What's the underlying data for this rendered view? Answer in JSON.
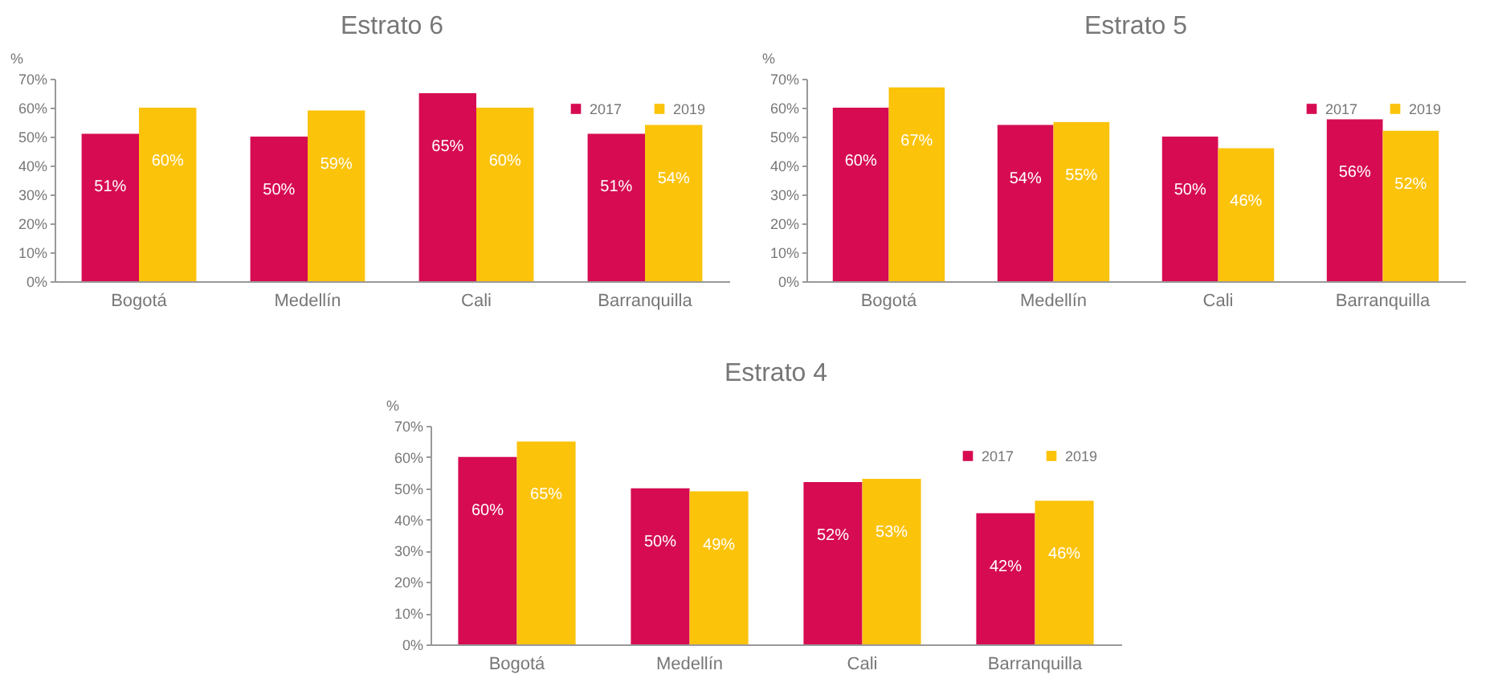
{
  "chart_data": [
    {
      "type": "bar",
      "title": "Estrato 6",
      "ylabel": "%",
      "categories": [
        "Bogotá",
        "Medellín",
        "Cali",
        "Barranquilla"
      ],
      "series": [
        {
          "name": "2017",
          "color": "#d60b52",
          "values": [
            51,
            50,
            65,
            51
          ],
          "value_labels": [
            "51%",
            "50%",
            "65%",
            "51%"
          ]
        },
        {
          "name": "2019",
          "color": "#fcc30b",
          "values": [
            60,
            59,
            60,
            54
          ],
          "value_labels": [
            "60%",
            "59%",
            "60%",
            "54%"
          ]
        }
      ],
      "ylim": [
        0,
        70
      ],
      "yticks": [
        {
          "value": 0,
          "label": "0%"
        },
        {
          "value": 10,
          "label": "10%"
        },
        {
          "value": 20,
          "label": "20%"
        },
        {
          "value": 30,
          "label": "30%"
        },
        {
          "value": 40,
          "label": "40%"
        },
        {
          "value": 50,
          "label": "50%"
        },
        {
          "value": 60,
          "label": "60%"
        },
        {
          "value": 70,
          "label": "70%"
        }
      ],
      "legend": "top right",
      "grid": false
    },
    {
      "type": "bar",
      "title": "Estrato 5",
      "ylabel": "%",
      "categories": [
        "Bogotá",
        "Medellín",
        "Cali",
        "Barranquilla"
      ],
      "series": [
        {
          "name": "2017",
          "color": "#d60b52",
          "values": [
            60,
            54,
            50,
            56
          ],
          "value_labels": [
            "60%",
            "54%",
            "50%",
            "56%"
          ]
        },
        {
          "name": "2019",
          "color": "#fcc30b",
          "values": [
            67,
            55,
            46,
            52
          ],
          "value_labels": [
            "67%",
            "55%",
            "46%",
            "52%"
          ]
        }
      ],
      "ylim": [
        0,
        70
      ],
      "yticks": [
        {
          "value": 0,
          "label": "0%"
        },
        {
          "value": 10,
          "label": "10%"
        },
        {
          "value": 20,
          "label": "20%"
        },
        {
          "value": 30,
          "label": "30%"
        },
        {
          "value": 40,
          "label": "40%"
        },
        {
          "value": 50,
          "label": "50%"
        },
        {
          "value": 60,
          "label": "60%"
        },
        {
          "value": 70,
          "label": "70%"
        }
      ],
      "legend": "top right",
      "grid": false
    },
    {
      "type": "bar",
      "title": "Estrato 4",
      "ylabel": "%",
      "categories": [
        "Bogotá",
        "Medellín",
        "Cali",
        "Barranquilla"
      ],
      "series": [
        {
          "name": "2017",
          "color": "#d60b52",
          "values": [
            60,
            50,
            52,
            42
          ],
          "value_labels": [
            "60%",
            "50%",
            "52%",
            "42%"
          ]
        },
        {
          "name": "2019",
          "color": "#fcc30b",
          "values": [
            65,
            49,
            53,
            46
          ],
          "value_labels": [
            "65%",
            "49%",
            "53%",
            "46%"
          ]
        }
      ],
      "ylim": [
        0,
        70
      ],
      "yticks": [
        {
          "value": 0,
          "label": "0%"
        },
        {
          "value": 10,
          "label": "10%"
        },
        {
          "value": 20,
          "label": "20%"
        },
        {
          "value": 30,
          "label": "30%"
        },
        {
          "value": 40,
          "label": "40%"
        },
        {
          "value": 50,
          "label": "50%"
        },
        {
          "value": 60,
          "label": "60%"
        },
        {
          "value": 70,
          "label": "70%"
        }
      ],
      "legend": "top right",
      "grid": false
    }
  ]
}
